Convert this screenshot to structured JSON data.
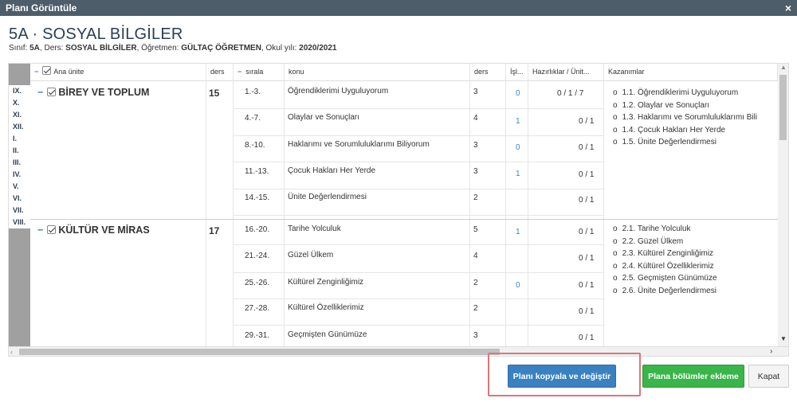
{
  "dialog": {
    "title": "Planı Görüntüle",
    "close": "×"
  },
  "page": {
    "title": "5A · SOSYAL BİLGİLER",
    "sinif_label": "Sınıf: ",
    "sinif": "5A",
    "ders_label": ", Ders: ",
    "ders": "SOSYAL BİLGİLER",
    "ogretmen_label": ", Öğretmen: ",
    "ogretmen": "GÜLTAÇ ÖĞRETMEN",
    "yil_label": ", Okul yılı: ",
    "yil": "2020/2021"
  },
  "headers": {
    "ana_unite": "Ana ünite",
    "ders": "ders",
    "sirala": "sırala",
    "konu": "konu",
    "ders2": "ders",
    "islem": "İşl...",
    "hazirlik": "Hazırlıklar / Ünit...",
    "kazanimlar": "Kazanımlar"
  },
  "romans": [
    "IX.",
    "X.",
    "XI.",
    "XII.",
    "I.",
    "II.",
    "III.",
    "IV.",
    "V.",
    "VI.",
    "VII.",
    "VIII."
  ],
  "units": [
    {
      "name": "BİREY VE TOPLUM",
      "ders": "15",
      "rows": [
        {
          "sira": "1.-3.",
          "konu": "Öğrendiklerimi Uyguluyorum",
          "ders": "3",
          "isl": "0",
          "haz": "0 / 1 / 7"
        },
        {
          "sira": "4.-7.",
          "konu": "Olaylar ve Sonuçları",
          "ders": "4",
          "isl": "1",
          "haz": "0 / 1"
        },
        {
          "sira": "8.-10.",
          "konu": "Haklarımı ve Sorumluluklarımı Biliyorum",
          "ders": "3",
          "isl": "0",
          "haz": "0 / 1"
        },
        {
          "sira": "11.-13.",
          "konu": "Çocuk Hakları Her Yerde",
          "ders": "3",
          "isl": "1",
          "haz": "0 / 1"
        },
        {
          "sira": "14.-15.",
          "konu": "Ünite Değerlendirmesi",
          "ders": "2",
          "isl": "",
          "haz": "0 / 1"
        }
      ],
      "kazanimlar": [
        "1.1. Öğrendiklerimi Uyguluyorum",
        "1.2. Olaylar ve Sonuçları",
        "1.3. Haklarımı ve Sorumluluklarımı Bili",
        "1.4. Çocuk Hakları Her Yerde",
        "1.5. Ünite Değerlendirmesi"
      ]
    },
    {
      "name": "KÜLTÜR VE MİRAS",
      "ders": "17",
      "rows": [
        {
          "sira": "16.-20.",
          "konu": "Tarihe Yolculuk",
          "ders": "5",
          "isl": "1",
          "haz": "0 / 1"
        },
        {
          "sira": "21.-24.",
          "konu": "Güzel Ülkem",
          "ders": "4",
          "isl": "",
          "haz": "0 / 1"
        },
        {
          "sira": "25.-26.",
          "konu": "Kültürel Zenginliğimiz",
          "ders": "2",
          "isl": "0",
          "haz": "0 / 1"
        },
        {
          "sira": "27.-28.",
          "konu": "Kültürel Özelliklerimiz",
          "ders": "2",
          "isl": "",
          "haz": "0 / 1"
        },
        {
          "sira": "29.-31.",
          "konu": "Geçmişten Günümüze",
          "ders": "3",
          "isl": "",
          "haz": "0 / 1"
        }
      ],
      "kazanimlar": [
        "2.1. Tarihe Yolculuk",
        "2.2. Güzel Ülkem",
        "2.3. Kültürel Zenginliğimiz",
        "2.4. Kültürel Özelliklerimiz",
        "2.5. Geçmişten Günümüze",
        "2.6. Ünite Değerlendirmesi"
      ]
    }
  ],
  "buttons": {
    "copy": "Planı kopyala ve değiştir",
    "add": "Plana bölümler ekleme",
    "close": "Kapat"
  },
  "colors": {
    "titlebar": "#4d5d69",
    "primary": "#3a81c2",
    "success": "#39b54a",
    "highlight": "#d9777a"
  }
}
